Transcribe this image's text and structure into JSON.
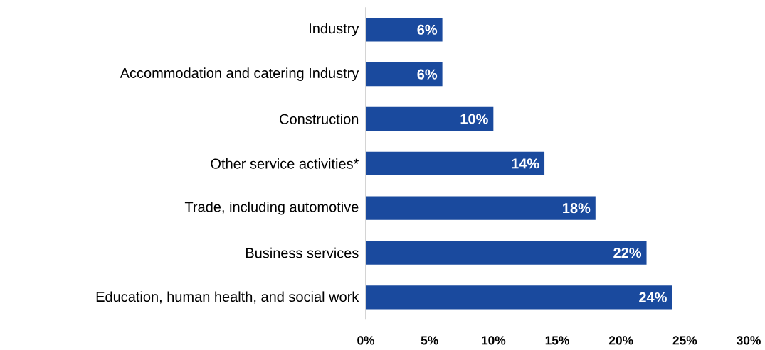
{
  "chart_data": {
    "type": "bar",
    "orientation": "horizontal",
    "categories": [
      "Industry",
      "Accommodation and catering Industry",
      "Construction",
      "Other service activities*",
      "Trade, including automotive",
      "Business services",
      "Education, human health, and social work"
    ],
    "values": [
      6,
      6,
      10,
      14,
      18,
      22,
      24
    ],
    "value_labels": [
      "6%",
      "6%",
      "10%",
      "14%",
      "18%",
      "22%",
      "24%"
    ],
    "color": "#1a4a9e",
    "xlim": [
      0,
      30
    ],
    "xticks": [
      {
        "value": 0,
        "label": "0%"
      },
      {
        "value": 5,
        "label": "5%"
      },
      {
        "value": 10,
        "label": "10%"
      },
      {
        "value": 15,
        "label": "15%"
      },
      {
        "value": 20,
        "label": "20%"
      },
      {
        "value": 25,
        "label": "25%"
      },
      {
        "value": 30,
        "label": "30%"
      }
    ],
    "grid": false
  }
}
